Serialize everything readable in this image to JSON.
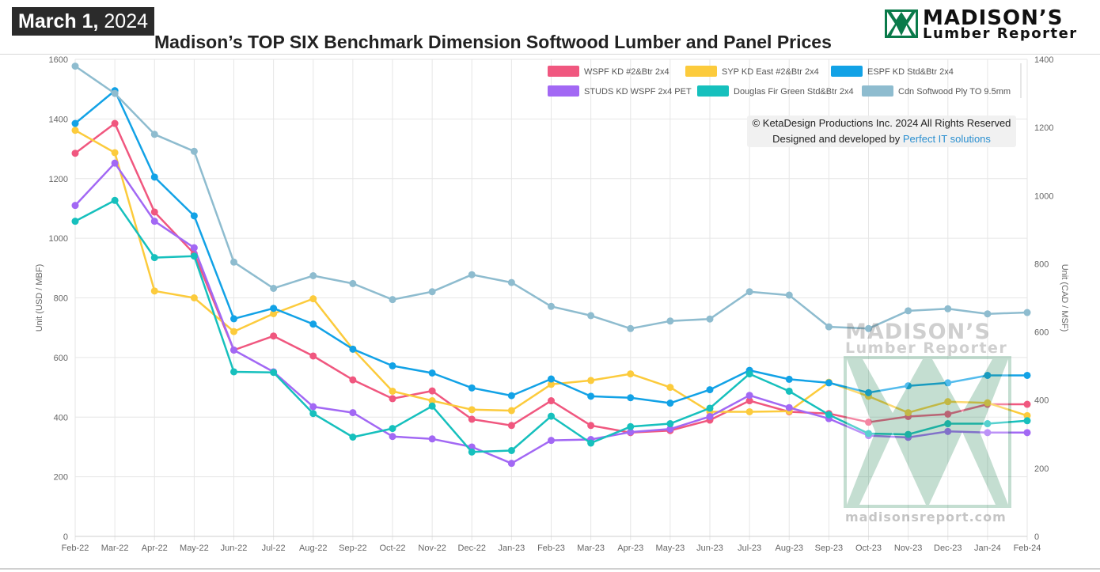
{
  "header": {
    "date_bold": "March 1,",
    "date_year": "2024",
    "title": "Madison’s TOP SIX Benchmark Dimension Softwood Lumber and Panel Prices"
  },
  "logo": {
    "brand": "MADISON’S",
    "sub": "Lumber Reporter"
  },
  "copyright": {
    "line1": "© KetaDesign Productions Inc. 2024 All Rights Reserved",
    "line2_prefix": "Designed and developed by ",
    "line2_link": "Perfect IT solutions"
  },
  "watermark": {
    "brand": "MADISON’S",
    "sub": "Lumber Reporter",
    "url": "madisonsreport.com"
  },
  "colors": {
    "wspf": "#f0577f",
    "syp": "#fccb3c",
    "espf": "#12a2e6",
    "studs": "#a268f4",
    "dfir": "#16c0bd",
    "ply": "#8ebccf",
    "grid": "#e6e6e6",
    "axis_text": "#666666"
  },
  "chart_data": {
    "type": "line",
    "x": [
      "Feb-22",
      "Mar-22",
      "Apr-22",
      "May-22",
      "Jun-22",
      "Jul-22",
      "Aug-22",
      "Sep-22",
      "Oct-22",
      "Nov-22",
      "Dec-22",
      "Jan-23",
      "Feb-23",
      "Mar-23",
      "Apr-23",
      "May-23",
      "Jun-23",
      "Jul-23",
      "Aug-23",
      "Sep-23",
      "Oct-23",
      "Nov-23",
      "Dec-23",
      "Jan-24",
      "Feb-24"
    ],
    "ylabel": "Unit (USD / MBF)",
    "ylabel_right": "Unit (CAD / MSF)",
    "ylim": [
      0,
      1600
    ],
    "ylim_right": [
      0,
      1400
    ],
    "yticks": [
      0,
      200,
      400,
      600,
      800,
      1000,
      1200,
      1400,
      1600
    ],
    "yticks_right": [
      0,
      200,
      400,
      600,
      800,
      1000,
      1200,
      1400
    ],
    "grid": true,
    "legend_position": "top-right",
    "series": [
      {
        "name": "WSPF KD #2&Btr 2x4",
        "key": "wspf",
        "axis": "left",
        "values": [
          1285,
          1385,
          1088,
          948,
          625,
          672,
          605,
          525,
          462,
          488,
          393,
          372,
          455,
          372,
          348,
          355,
          390,
          455,
          418,
          412,
          383,
          402,
          410,
          443,
          443
        ]
      },
      {
        "name": "SYP KD East #2&Btr 2x4",
        "key": "syp",
        "axis": "left",
        "values": [
          1362,
          1287,
          823,
          800,
          687,
          747,
          797,
          628,
          487,
          455,
          425,
          422,
          510,
          523,
          545,
          500,
          418,
          418,
          420,
          517,
          470,
          415,
          452,
          448,
          405
        ]
      },
      {
        "name": "ESPF KD Std&Btr 2x4",
        "key": "espf",
        "axis": "left",
        "values": [
          1385,
          1495,
          1205,
          1075,
          730,
          765,
          712,
          628,
          572,
          548,
          498,
          472,
          528,
          470,
          465,
          447,
          492,
          557,
          527,
          515,
          482,
          505,
          515,
          540,
          540
        ]
      },
      {
        "name": "STUDS KD WSPF 2x4 PET",
        "key": "studs",
        "axis": "left",
        "values": [
          1110,
          1252,
          1057,
          968,
          625,
          552,
          435,
          415,
          335,
          327,
          300,
          245,
          322,
          325,
          350,
          360,
          402,
          473,
          432,
          395,
          338,
          332,
          352,
          348,
          348
        ]
      },
      {
        "name": "Douglas Fir Green Std&Btr 2x4",
        "key": "dfir",
        "axis": "left",
        "values": [
          1057,
          1127,
          935,
          940,
          552,
          550,
          412,
          333,
          362,
          437,
          283,
          288,
          403,
          313,
          368,
          378,
          430,
          545,
          487,
          408,
          345,
          342,
          378,
          378,
          388
        ]
      },
      {
        "name": "Cdn Softwood Ply TO 9.5mm",
        "key": "ply",
        "axis": "right",
        "values": [
          1380,
          1300,
          1180,
          1130,
          805,
          728,
          765,
          742,
          695,
          718,
          768,
          745,
          675,
          648,
          610,
          632,
          638,
          718,
          708,
          615,
          610,
          662,
          668,
          653,
          657
        ]
      }
    ]
  }
}
